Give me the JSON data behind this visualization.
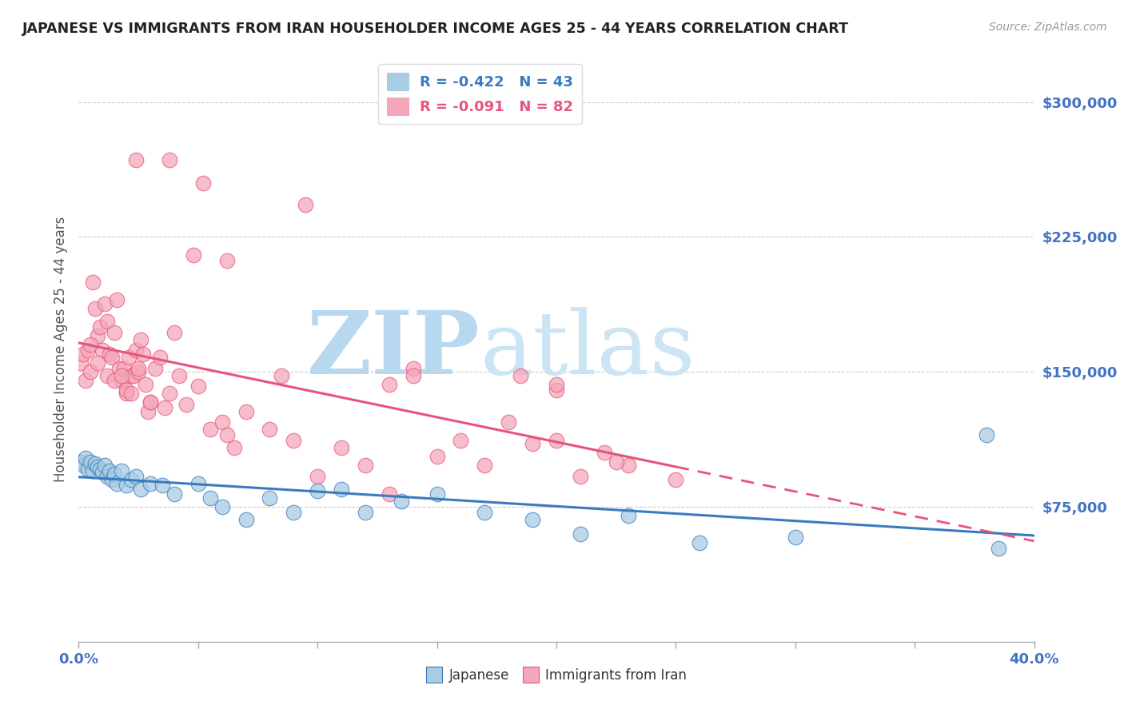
{
  "title": "JAPANESE VS IMMIGRANTS FROM IRAN HOUSEHOLDER INCOME AGES 25 - 44 YEARS CORRELATION CHART",
  "source": "Source: ZipAtlas.com",
  "ylabel": "Householder Income Ages 25 - 44 years",
  "yticks": [
    0,
    75000,
    150000,
    225000,
    300000
  ],
  "ytick_labels": [
    "",
    "$75,000",
    "$150,000",
    "$225,000",
    "$300,000"
  ],
  "xlim": [
    0.0,
    40.0
  ],
  "ylim": [
    0,
    325000
  ],
  "watermark": "ZIPatlas",
  "legend_blue_r": "R = -0.422",
  "legend_blue_n": "N = 43",
  "legend_pink_r": "R = -0.091",
  "legend_pink_n": "N = 82",
  "blue_color": "#a8cce4",
  "pink_color": "#f4a7b9",
  "blue_line_color": "#3a7bbf",
  "pink_line_color": "#e8547a",
  "title_color": "#222222",
  "tick_color": "#4472c4",
  "source_color": "#999999",
  "watermark_color": "#cce4f5",
  "japanese_x": [
    0.1,
    0.2,
    0.3,
    0.4,
    0.5,
    0.6,
    0.7,
    0.8,
    0.9,
    1.0,
    1.1,
    1.2,
    1.3,
    1.4,
    1.5,
    1.6,
    1.8,
    2.0,
    2.2,
    2.4,
    2.6,
    3.0,
    3.5,
    4.0,
    5.0,
    5.5,
    6.0,
    7.0,
    8.0,
    9.0,
    10.0,
    11.0,
    12.0,
    13.5,
    15.0,
    17.0,
    19.0,
    21.0,
    23.0,
    26.0,
    30.0,
    38.0,
    38.5
  ],
  "japanese_y": [
    100000,
    98000,
    102000,
    96000,
    100000,
    95000,
    99000,
    97000,
    96000,
    94000,
    98000,
    92000,
    95000,
    90000,
    93000,
    88000,
    95000,
    87000,
    90000,
    92000,
    85000,
    88000,
    87000,
    82000,
    88000,
    80000,
    75000,
    68000,
    80000,
    72000,
    84000,
    85000,
    72000,
    78000,
    82000,
    72000,
    68000,
    60000,
    70000,
    55000,
    58000,
    115000,
    52000
  ],
  "iran_x": [
    0.1,
    0.2,
    0.3,
    0.4,
    0.5,
    0.6,
    0.7,
    0.8,
    0.9,
    1.0,
    1.1,
    1.2,
    1.3,
    1.4,
    1.5,
    1.6,
    1.7,
    1.8,
    1.9,
    2.0,
    2.1,
    2.2,
    2.3,
    2.4,
    2.5,
    2.6,
    2.7,
    2.8,
    2.9,
    3.0,
    3.2,
    3.4,
    3.6,
    3.8,
    4.0,
    4.5,
    5.0,
    5.5,
    6.0,
    6.5,
    7.0,
    8.0,
    9.0,
    10.0,
    11.0,
    12.0,
    13.0,
    14.0,
    15.0,
    16.0,
    17.0,
    18.0,
    19.0,
    20.0,
    21.0,
    22.0,
    23.0,
    25.0,
    3.8,
    5.2,
    8.5,
    14.0,
    20.0,
    9.5,
    2.4,
    6.2,
    4.8,
    13.0,
    18.5,
    0.5,
    0.8,
    1.2,
    1.5,
    1.8,
    2.0,
    2.2,
    2.5,
    3.0,
    4.2,
    6.2,
    20.0,
    22.5
  ],
  "iran_y": [
    155000,
    160000,
    145000,
    162000,
    150000,
    200000,
    185000,
    170000,
    175000,
    162000,
    188000,
    178000,
    160000,
    158000,
    172000,
    190000,
    152000,
    145000,
    152000,
    138000,
    158000,
    148000,
    148000,
    162000,
    150000,
    168000,
    160000,
    143000,
    128000,
    133000,
    152000,
    158000,
    130000,
    138000,
    172000,
    132000,
    142000,
    118000,
    122000,
    108000,
    128000,
    118000,
    112000,
    92000,
    108000,
    98000,
    82000,
    152000,
    103000,
    112000,
    98000,
    122000,
    110000,
    112000,
    92000,
    105000,
    98000,
    90000,
    268000,
    255000,
    148000,
    148000,
    140000,
    243000,
    268000,
    212000,
    215000,
    143000,
    148000,
    165000,
    155000,
    148000,
    145000,
    148000,
    140000,
    138000,
    152000,
    133000,
    148000,
    115000,
    143000,
    100000
  ]
}
